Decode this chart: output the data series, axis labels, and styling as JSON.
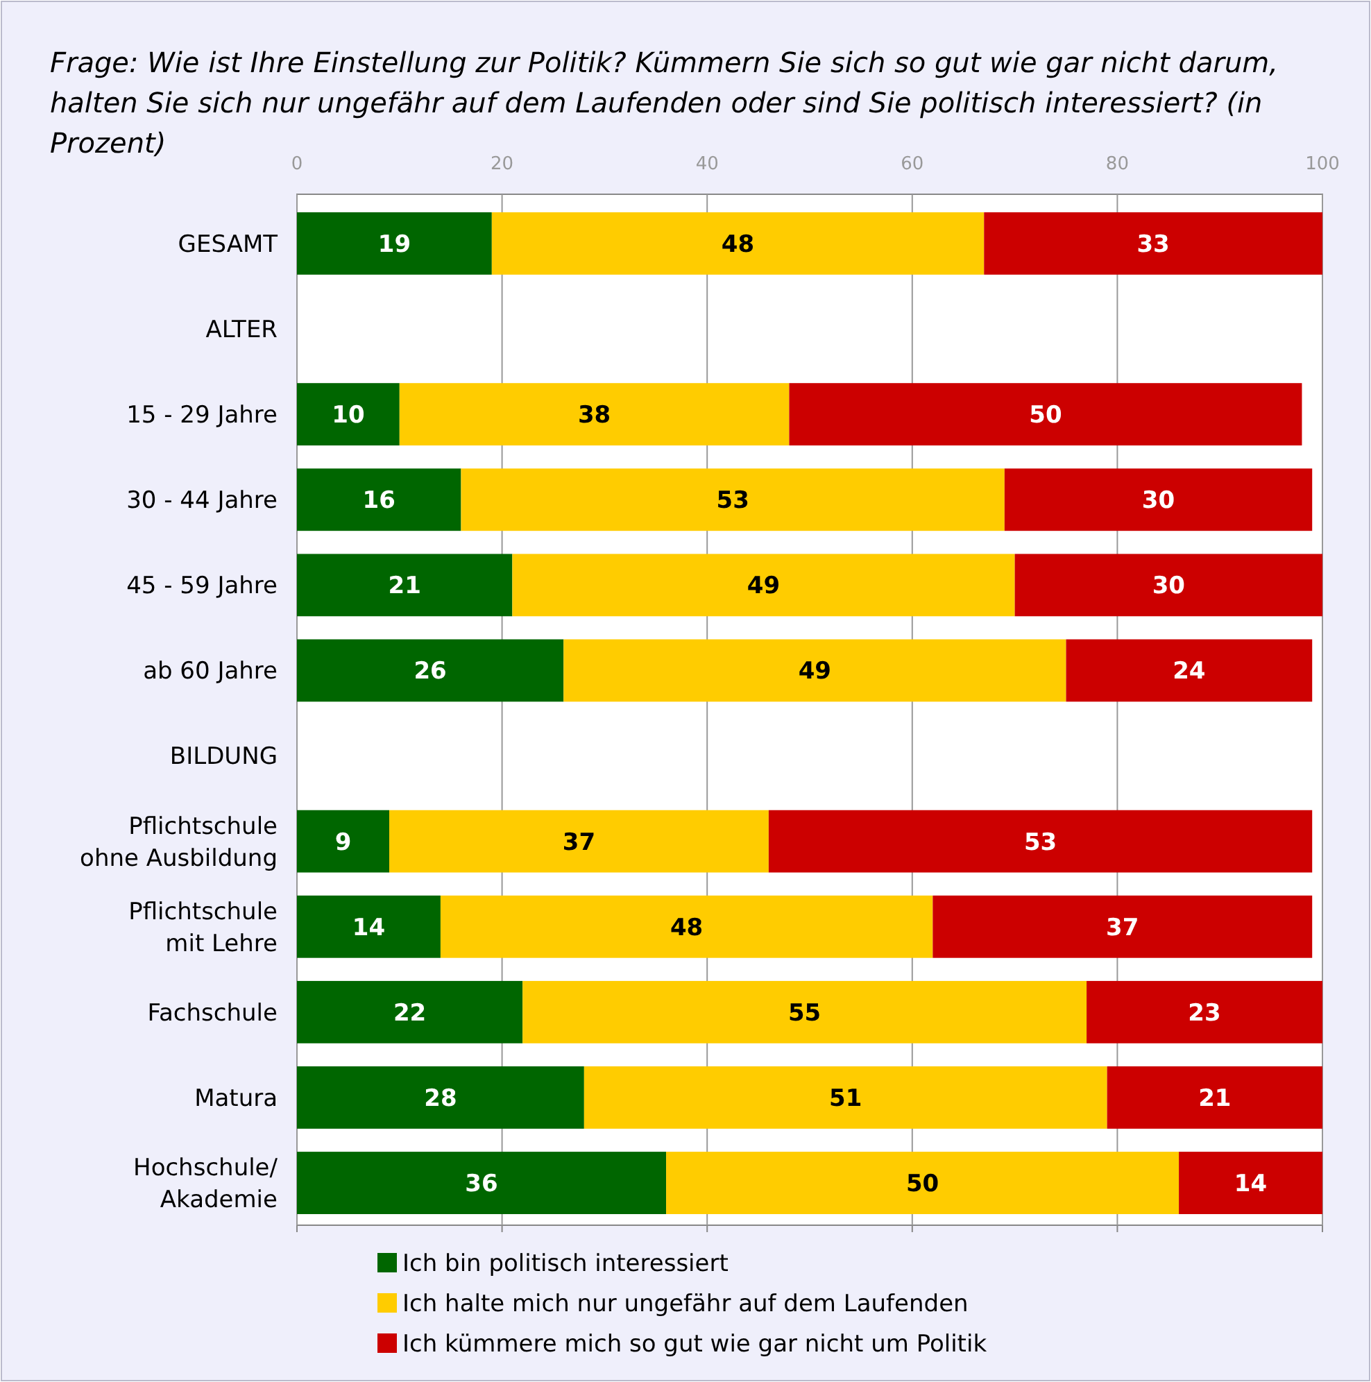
{
  "chart_data": {
    "type": "bar",
    "orientation": "horizontal",
    "stacked": true,
    "title": "Frage: Wie ist Ihre Einstellung zur Politik? Kümmern Sie sich so gut wie gar nicht darum, halten Sie sich nur ungefähr auf dem Laufenden oder sind Sie politisch interessiert? (in Prozent)",
    "categories": [
      "GESAMT",
      "ALTER",
      "15 - 29 Jahre",
      "30 - 44 Jahre",
      "45 - 59 Jahre",
      "ab 60 Jahre",
      "BILDUNG",
      "Pflichtschule\nohne Ausbildung",
      "Pflichtschule\nmit Lehre",
      "Fachschule",
      "Matura",
      "Hochschule/\nAkademie"
    ],
    "series": [
      {
        "name": "Ich bin politisch interessiert",
        "color": "#006600",
        "values": [
          19,
          null,
          10,
          16,
          21,
          26,
          null,
          9,
          14,
          22,
          28,
          36
        ]
      },
      {
        "name": "Ich halte mich nur ungefähr auf dem Laufenden",
        "color": "#ffcc00",
        "values": [
          48,
          null,
          38,
          53,
          49,
          49,
          null,
          37,
          48,
          55,
          51,
          50
        ]
      },
      {
        "name": "Ich kümmere mich so gut wie gar nicht um Politik",
        "color": "#cc0000",
        "values": [
          33,
          null,
          50,
          30,
          30,
          24,
          null,
          53,
          37,
          23,
          21,
          14
        ]
      }
    ],
    "xlim": [
      0,
      100
    ],
    "xticks": [
      0,
      20,
      40,
      60,
      80,
      100
    ],
    "grid": "x",
    "data_labels": true,
    "legend": "bottom"
  }
}
